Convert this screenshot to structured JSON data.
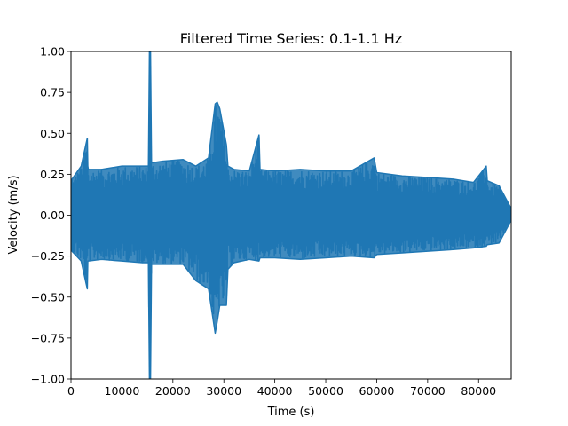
{
  "chart_data": {
    "type": "line",
    "title": "Filtered Time Series: 0.1-1.1 Hz",
    "xlabel": "Time (s)",
    "ylabel": "Velocity (m/s)",
    "xlim": [
      0,
      86400
    ],
    "ylim": [
      -1.0,
      1.0
    ],
    "x_ticks": [
      "0",
      "10000",
      "20000",
      "30000",
      "40000",
      "50000",
      "60000",
      "70000",
      "80000"
    ],
    "x_tick_values": [
      0,
      10000,
      20000,
      30000,
      40000,
      50000,
      60000,
      70000,
      80000
    ],
    "y_ticks": [
      "−1.00",
      "−0.75",
      "−0.50",
      "−0.25",
      "0.00",
      "0.25",
      "0.50",
      "0.75",
      "1.00"
    ],
    "y_tick_values": [
      -1.0,
      -0.75,
      -0.5,
      -0.25,
      0.0,
      0.25,
      0.5,
      0.75,
      1.0
    ],
    "grid": false,
    "series": [
      {
        "color": "#1f77b4",
        "envelope": {
          "x": [
            200,
            2000,
            3200,
            3300,
            3400,
            6000,
            10000,
            14000,
            15200,
            15400,
            15600,
            15800,
            18000,
            22000,
            24500,
            27000,
            28300,
            28700,
            29200,
            30500,
            30800,
            32000,
            35000,
            36900,
            37100,
            40000,
            45000,
            50000,
            55000,
            59500,
            60000,
            65000,
            70000,
            75000,
            79000,
            81500,
            81700,
            84000,
            86400
          ],
          "upper": [
            0.22,
            0.3,
            0.47,
            0.3,
            0.28,
            0.28,
            0.3,
            0.3,
            0.3,
            1.0,
            1.0,
            0.32,
            0.33,
            0.34,
            0.3,
            0.35,
            0.68,
            0.69,
            0.65,
            0.43,
            0.3,
            0.28,
            0.27,
            0.49,
            0.28,
            0.27,
            0.28,
            0.27,
            0.27,
            0.35,
            0.26,
            0.24,
            0.23,
            0.22,
            0.2,
            0.3,
            0.21,
            0.18,
            0.04
          ],
          "lower": [
            -0.22,
            -0.28,
            -0.45,
            -0.28,
            -0.28,
            -0.27,
            -0.28,
            -0.29,
            -0.29,
            -1.0,
            -1.0,
            -0.3,
            -0.3,
            -0.3,
            -0.4,
            -0.45,
            -0.72,
            -0.65,
            -0.55,
            -0.55,
            -0.33,
            -0.29,
            -0.27,
            -0.28,
            -0.26,
            -0.26,
            -0.27,
            -0.26,
            -0.25,
            -0.26,
            -0.24,
            -0.23,
            -0.22,
            -0.21,
            -0.2,
            -0.19,
            -0.18,
            -0.17,
            -0.03
          ]
        }
      }
    ]
  }
}
